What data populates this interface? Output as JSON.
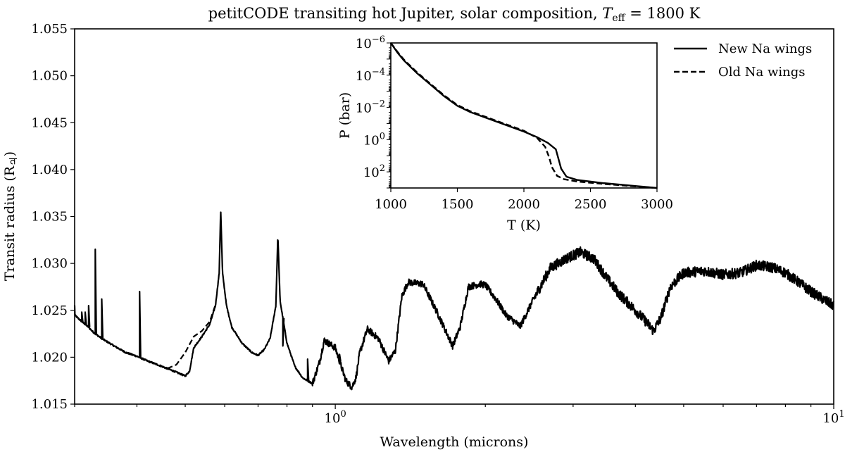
{
  "chart_data": [
    {
      "type": "line",
      "title_main": "petitCODE transiting hot Jupiter, solar composition, ",
      "title_var": "T",
      "title_sub": "eff",
      "title_rest": " = 1800 K",
      "xlabel": "Wavelength (microns)",
      "ylabel_main": "Transit radius (R",
      "ylabel_symbol": "♃",
      "ylabel_end": ")",
      "xscale": "log",
      "xlim": [
        0.3,
        10
      ],
      "ylim": [
        1.015,
        1.055
      ],
      "x_ticks": [
        {
          "value": 1,
          "base": "10",
          "exp": "0"
        },
        {
          "value": 10,
          "base": "10",
          "exp": "1"
        }
      ],
      "y_ticks": [
        "1.015",
        "1.020",
        "1.025",
        "1.030",
        "1.035",
        "1.040",
        "1.045",
        "1.050",
        "1.055"
      ],
      "legend_position": "top-right",
      "series": [
        {
          "name": "New Na wings",
          "style": "solid",
          "points": [
            [
              0.3,
              1.0245
            ],
            [
              0.31,
              1.0238
            ],
            [
              0.32,
              1.0232
            ],
            [
              0.325,
              1.0228
            ],
            [
              0.33,
              1.0225
            ],
            [
              0.34,
              1.022
            ],
            [
              0.36,
              1.0212
            ],
            [
              0.38,
              1.0205
            ],
            [
              0.4,
              1.0201
            ],
            [
              0.42,
              1.0196
            ],
            [
              0.44,
              1.0192
            ],
            [
              0.46,
              1.0188
            ],
            [
              0.48,
              1.0184
            ],
            [
              0.5,
              1.018
            ],
            [
              0.51,
              1.0185
            ],
            [
              0.52,
              1.021
            ],
            [
              0.54,
              1.0222
            ],
            [
              0.56,
              1.0235
            ],
            [
              0.575,
              1.0255
            ],
            [
              0.585,
              1.029
            ],
            [
              0.589,
              1.0358
            ],
            [
              0.594,
              1.029
            ],
            [
              0.605,
              1.0255
            ],
            [
              0.62,
              1.0232
            ],
            [
              0.65,
              1.0215
            ],
            [
              0.68,
              1.0205
            ],
            [
              0.7,
              1.0202
            ],
            [
              0.72,
              1.0208
            ],
            [
              0.74,
              1.022
            ],
            [
              0.76,
              1.0255
            ],
            [
              0.767,
              1.033
            ],
            [
              0.775,
              1.026
            ],
            [
              0.8,
              1.0215
            ],
            [
              0.83,
              1.019
            ],
            [
              0.86,
              1.0178
            ],
            [
              0.9,
              1.0172
            ],
            [
              0.93,
              1.0195
            ],
            [
              0.95,
              1.0218
            ],
            [
              1.0,
              1.021
            ],
            [
              1.05,
              1.0175
            ],
            [
              1.08,
              1.0168
            ],
            [
              1.1,
              1.0178
            ],
            [
              1.12,
              1.0205
            ],
            [
              1.16,
              1.023
            ],
            [
              1.22,
              1.022
            ],
            [
              1.28,
              1.0196
            ],
            [
              1.32,
              1.0207
            ],
            [
              1.36,
              1.0265
            ],
            [
              1.4,
              1.028
            ],
            [
              1.5,
              1.0278
            ],
            [
              1.6,
              1.0248
            ],
            [
              1.72,
              1.0212
            ],
            [
              1.78,
              1.0232
            ],
            [
              1.85,
              1.0275
            ],
            [
              1.95,
              1.0278
            ],
            [
              2.0,
              1.0277
            ],
            [
              2.1,
              1.0262
            ],
            [
              2.2,
              1.0245
            ],
            [
              2.35,
              1.0233
            ],
            [
              2.5,
              1.0262
            ],
            [
              2.7,
              1.0295
            ],
            [
              2.9,
              1.0305
            ],
            [
              3.1,
              1.0312
            ],
            [
              3.3,
              1.0305
            ],
            [
              3.5,
              1.0285
            ],
            [
              3.7,
              1.0268
            ],
            [
              4.0,
              1.025
            ],
            [
              4.2,
              1.0238
            ],
            [
              4.35,
              1.0228
            ],
            [
              4.5,
              1.0242
            ],
            [
              4.7,
              1.0275
            ],
            [
              5.0,
              1.029
            ],
            [
              5.5,
              1.0292
            ],
            [
              6.0,
              1.0288
            ],
            [
              6.5,
              1.029
            ],
            [
              7.0,
              1.0298
            ],
            [
              7.5,
              1.0296
            ],
            [
              8.0,
              1.029
            ],
            [
              8.5,
              1.028
            ],
            [
              9.0,
              1.027
            ],
            [
              9.5,
              1.0262
            ],
            [
              10,
              1.0255
            ]
          ],
          "spikes": [
            [
              0.31,
              1.0248
            ],
            [
              0.315,
              1.0248
            ],
            [
              0.32,
              1.0255
            ],
            [
              0.33,
              1.0315
            ],
            [
              0.34,
              1.0262
            ],
            [
              0.405,
              1.027
            ],
            [
              0.785,
              1.0212
            ],
            [
              0.88,
              1.0198
            ],
            [
              1.02,
              1.0203
            ]
          ]
        },
        {
          "name": "Old Na wings",
          "style": "dashed",
          "points": [
            [
              0.46,
              1.0188
            ],
            [
              0.48,
              1.0192
            ],
            [
              0.5,
              1.0205
            ],
            [
              0.52,
              1.0222
            ],
            [
              0.54,
              1.0228
            ],
            [
              0.56,
              1.0238
            ],
            [
              0.575,
              1.0256
            ]
          ]
        }
      ]
    },
    {
      "type": "line",
      "xlabel": "T (K)",
      "ylabel": "P (bar)",
      "xlim": [
        1000,
        3000
      ],
      "yscale": "log",
      "ylim_exponent": [
        -6,
        3
      ],
      "y_inverted": true,
      "x_ticks": [
        "1000",
        "1500",
        "2000",
        "2500",
        "3000"
      ],
      "y_ticks": [
        {
          "base": "10",
          "exp": "−6",
          "value": -6
        },
        {
          "base": "10",
          "exp": "−4",
          "value": -4
        },
        {
          "base": "10",
          "exp": "−2",
          "value": -2
        },
        {
          "base": "10",
          "exp": "0",
          "value": 0
        },
        {
          "base": "10",
          "exp": "2",
          "value": 2
        }
      ],
      "series": [
        {
          "name": "New Na wings",
          "style": "solid",
          "points": [
            [
              1000,
              -6.0
            ],
            [
              1050,
              -5.4
            ],
            [
              1100,
              -4.9
            ],
            [
              1200,
              -4.1
            ],
            [
              1300,
              -3.4
            ],
            [
              1400,
              -2.7
            ],
            [
              1500,
              -2.1
            ],
            [
              1600,
              -1.7
            ],
            [
              1700,
              -1.4
            ],
            [
              1800,
              -1.1
            ],
            [
              1900,
              -0.8
            ],
            [
              2000,
              -0.5
            ],
            [
              2100,
              -0.15
            ],
            [
              2180,
              0.2
            ],
            [
              2240,
              0.6
            ],
            [
              2260,
              1.2
            ],
            [
              2280,
              1.8
            ],
            [
              2320,
              2.3
            ],
            [
              2400,
              2.5
            ],
            [
              2600,
              2.7
            ],
            [
              2800,
              2.85
            ],
            [
              3000,
              3.0
            ]
          ]
        },
        {
          "name": "Old Na wings",
          "style": "dashed",
          "points": [
            [
              1000,
              -6.0
            ],
            [
              1050,
              -5.45
            ],
            [
              1100,
              -4.95
            ],
            [
              1200,
              -4.15
            ],
            [
              1300,
              -3.45
            ],
            [
              1400,
              -2.75
            ],
            [
              1500,
              -2.15
            ],
            [
              1600,
              -1.75
            ],
            [
              1700,
              -1.45
            ],
            [
              1800,
              -1.15
            ],
            [
              1900,
              -0.85
            ],
            [
              2000,
              -0.55
            ],
            [
              2100,
              -0.1
            ],
            [
              2160,
              0.45
            ],
            [
              2190,
              1.1
            ],
            [
              2210,
              1.7
            ],
            [
              2250,
              2.25
            ],
            [
              2300,
              2.45
            ],
            [
              2400,
              2.6
            ],
            [
              2600,
              2.75
            ],
            [
              2800,
              2.88
            ],
            [
              3000,
              3.0
            ]
          ]
        }
      ]
    }
  ]
}
